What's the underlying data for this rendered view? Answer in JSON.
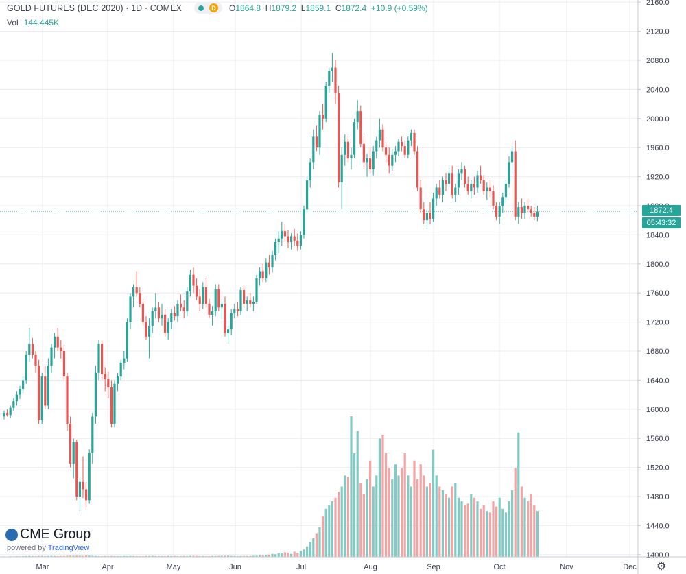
{
  "header": {
    "title": "GOLD FUTURES (DEC 2020) · 1D · COMEX",
    "interval_badge": "D",
    "ohlc": {
      "o_label": "O",
      "o": "1864.8",
      "h_label": "H",
      "h": "1879.2",
      "l_label": "L",
      "l": "1859.1",
      "c_label": "C",
      "c": "1872.4",
      "change": "+10.9 (+0.59%)"
    },
    "vol_label": "Vol",
    "vol_value": "144.445K"
  },
  "price_tag": {
    "last": "1872.4",
    "countdown": "05:43:32"
  },
  "branding": {
    "logo": "CME Group",
    "powered": "powered by",
    "tv": "TradingView"
  },
  "colors": {
    "up": "#26a69a",
    "down": "#ef5350",
    "vol_up": "#80cbc4",
    "vol_down": "#f5a3a3",
    "grid": "#e9ecf1"
  },
  "icons": {
    "status": "status-dot-icon",
    "settings": "gear-icon",
    "logo": "cme-globe-icon"
  },
  "chart_data": {
    "type": "candlestick",
    "x_ticks": [
      "Mar",
      "Apr",
      "May",
      "Jun",
      "Jul",
      "Aug",
      "Sep",
      "Oct",
      "Nov",
      "Dec"
    ],
    "y_ticks": [
      1400.0,
      1440.0,
      1480.0,
      1520.0,
      1560.0,
      1600.0,
      1640.0,
      1680.0,
      1720.0,
      1760.0,
      1800.0,
      1840.0,
      1880.0,
      1920.0,
      1960.0,
      2000.0,
      2040.0,
      2080.0,
      2120.0,
      2160.0
    ],
    "ylim": [
      1397,
      2163
    ],
    "last_price": 1872.4,
    "series": [
      {
        "name": "Price",
        "points": [
          [
            1590,
            1598,
            1586,
            1595
          ],
          [
            1595,
            1600,
            1590,
            1592
          ],
          [
            1592,
            1605,
            1588,
            1602
          ],
          [
            1602,
            1615,
            1598,
            1611
          ],
          [
            1611,
            1625,
            1605,
            1620
          ],
          [
            1620,
            1632,
            1614,
            1628
          ],
          [
            1628,
            1645,
            1622,
            1640
          ],
          [
            1640,
            1680,
            1635,
            1675
          ],
          [
            1675,
            1712,
            1665,
            1690
          ],
          [
            1690,
            1698,
            1670,
            1675
          ],
          [
            1675,
            1680,
            1650,
            1660
          ],
          [
            1660,
            1668,
            1580,
            1585
          ],
          [
            1585,
            1650,
            1580,
            1645
          ],
          [
            1645,
            1660,
            1600,
            1605
          ],
          [
            1605,
            1670,
            1600,
            1660
          ],
          [
            1660,
            1690,
            1650,
            1685
          ],
          [
            1685,
            1705,
            1670,
            1700
          ],
          [
            1700,
            1712,
            1680,
            1685
          ],
          [
            1685,
            1695,
            1670,
            1680
          ],
          [
            1680,
            1688,
            1640,
            1645
          ],
          [
            1645,
            1650,
            1570,
            1580
          ],
          [
            1580,
            1590,
            1520,
            1525
          ],
          [
            1525,
            1560,
            1505,
            1555
          ],
          [
            1555,
            1558,
            1475,
            1480
          ],
          [
            1480,
            1505,
            1460,
            1500
          ],
          [
            1500,
            1535,
            1478,
            1490
          ],
          [
            1490,
            1500,
            1465,
            1475
          ],
          [
            1475,
            1545,
            1470,
            1540
          ],
          [
            1540,
            1595,
            1525,
            1590
          ],
          [
            1590,
            1660,
            1580,
            1650
          ],
          [
            1650,
            1695,
            1640,
            1690
          ],
          [
            1690,
            1695,
            1640,
            1648
          ],
          [
            1648,
            1658,
            1625,
            1642
          ],
          [
            1642,
            1652,
            1615,
            1630
          ],
          [
            1630,
            1640,
            1575,
            1580
          ],
          [
            1580,
            1640,
            1575,
            1635
          ],
          [
            1635,
            1650,
            1625,
            1645
          ],
          [
            1645,
            1668,
            1640,
            1664
          ],
          [
            1664,
            1680,
            1655,
            1670
          ],
          [
            1670,
            1725,
            1665,
            1720
          ],
          [
            1720,
            1760,
            1710,
            1755
          ],
          [
            1755,
            1772,
            1740,
            1768
          ],
          [
            1768,
            1790,
            1755,
            1760
          ],
          [
            1760,
            1768,
            1740,
            1745
          ],
          [
            1745,
            1752,
            1715,
            1720
          ],
          [
            1720,
            1728,
            1695,
            1700
          ],
          [
            1700,
            1725,
            1670,
            1715
          ],
          [
            1715,
            1740,
            1705,
            1735
          ],
          [
            1735,
            1760,
            1725,
            1740
          ],
          [
            1740,
            1748,
            1720,
            1725
          ],
          [
            1725,
            1745,
            1715,
            1730
          ],
          [
            1730,
            1738,
            1700,
            1705
          ],
          [
            1705,
            1725,
            1695,
            1720
          ],
          [
            1720,
            1738,
            1710,
            1732
          ],
          [
            1732,
            1742,
            1722,
            1728
          ],
          [
            1728,
            1750,
            1720,
            1745
          ],
          [
            1745,
            1758,
            1735,
            1740
          ],
          [
            1740,
            1750,
            1725,
            1735
          ],
          [
            1735,
            1768,
            1728,
            1762
          ],
          [
            1762,
            1792,
            1755,
            1785
          ],
          [
            1785,
            1795,
            1760,
            1770
          ],
          [
            1770,
            1780,
            1750,
            1755
          ],
          [
            1755,
            1765,
            1735,
            1745
          ],
          [
            1745,
            1775,
            1738,
            1768
          ],
          [
            1768,
            1780,
            1740,
            1745
          ],
          [
            1745,
            1752,
            1725,
            1730
          ],
          [
            1730,
            1742,
            1715,
            1735
          ],
          [
            1735,
            1772,
            1728,
            1765
          ],
          [
            1765,
            1772,
            1735,
            1740
          ],
          [
            1740,
            1752,
            1725,
            1745
          ],
          [
            1745,
            1755,
            1700,
            1705
          ],
          [
            1705,
            1715,
            1690,
            1710
          ],
          [
            1710,
            1738,
            1702,
            1732
          ],
          [
            1732,
            1745,
            1725,
            1738
          ],
          [
            1738,
            1748,
            1728,
            1735
          ],
          [
            1735,
            1768,
            1730,
            1764
          ],
          [
            1764,
            1770,
            1740,
            1745
          ],
          [
            1745,
            1755,
            1735,
            1750
          ],
          [
            1750,
            1760,
            1740,
            1745
          ],
          [
            1745,
            1755,
            1735,
            1748
          ],
          [
            1748,
            1785,
            1745,
            1780
          ],
          [
            1780,
            1795,
            1770,
            1790
          ],
          [
            1790,
            1800,
            1775,
            1780
          ],
          [
            1780,
            1808,
            1775,
            1802
          ],
          [
            1802,
            1812,
            1785,
            1795
          ],
          [
            1795,
            1818,
            1788,
            1812
          ],
          [
            1812,
            1835,
            1805,
            1830
          ],
          [
            1830,
            1845,
            1815,
            1835
          ],
          [
            1835,
            1858,
            1825,
            1845
          ],
          [
            1845,
            1855,
            1830,
            1838
          ],
          [
            1838,
            1846,
            1822,
            1830
          ],
          [
            1830,
            1842,
            1820,
            1838
          ],
          [
            1838,
            1848,
            1825,
            1832
          ],
          [
            1832,
            1842,
            1818,
            1825
          ],
          [
            1825,
            1845,
            1820,
            1840
          ],
          [
            1840,
            1880,
            1835,
            1875
          ],
          [
            1875,
            1920,
            1870,
            1915
          ],
          [
            1915,
            1945,
            1905,
            1940
          ],
          [
            1940,
            1985,
            1930,
            1975
          ],
          [
            1975,
            1990,
            1955,
            1960
          ],
          [
            1960,
            2010,
            1950,
            2005
          ],
          [
            2005,
            2020,
            1985,
            2000
          ],
          [
            2000,
            2050,
            1995,
            2045
          ],
          [
            2045,
            2070,
            2035,
            2065
          ],
          [
            2065,
            2090,
            2050,
            2070
          ],
          [
            2070,
            2080,
            2020,
            2035
          ],
          [
            2035,
            2045,
            1905,
            1912
          ],
          [
            1912,
            1960,
            1875,
            1950
          ],
          [
            1950,
            1978,
            1935,
            1968
          ],
          [
            1968,
            1975,
            1940,
            1945
          ],
          [
            1945,
            1960,
            1930,
            1950
          ],
          [
            1950,
            2000,
            1945,
            1995
          ],
          [
            1995,
            2025,
            1985,
            2010
          ],
          [
            2010,
            2018,
            1960,
            1965
          ],
          [
            1965,
            1975,
            1930,
            1940
          ],
          [
            1940,
            1952,
            1920,
            1945
          ],
          [
            1945,
            1960,
            1925,
            1930
          ],
          [
            1930,
            1962,
            1922,
            1955
          ],
          [
            1955,
            1975,
            1945,
            1970
          ],
          [
            1970,
            2000,
            1960,
            1985
          ],
          [
            1985,
            1992,
            1955,
            1960
          ],
          [
            1960,
            1968,
            1940,
            1950
          ],
          [
            1950,
            1960,
            1925,
            1935
          ],
          [
            1935,
            1958,
            1928,
            1950
          ],
          [
            1950,
            1962,
            1940,
            1955
          ],
          [
            1955,
            1972,
            1948,
            1968
          ],
          [
            1968,
            1975,
            1955,
            1962
          ],
          [
            1962,
            1970,
            1945,
            1950
          ],
          [
            1950,
            1975,
            1945,
            1970
          ],
          [
            1970,
            1985,
            1962,
            1980
          ],
          [
            1980,
            1985,
            1950,
            1955
          ],
          [
            1955,
            1962,
            1900,
            1905
          ],
          [
            1905,
            1915,
            1870,
            1875
          ],
          [
            1875,
            1885,
            1855,
            1860
          ],
          [
            1860,
            1875,
            1848,
            1870
          ],
          [
            1870,
            1885,
            1855,
            1862
          ],
          [
            1862,
            1898,
            1858,
            1890
          ],
          [
            1890,
            1910,
            1880,
            1905
          ],
          [
            1905,
            1915,
            1890,
            1895
          ],
          [
            1895,
            1920,
            1885,
            1915
          ],
          [
            1915,
            1925,
            1900,
            1910
          ],
          [
            1910,
            1932,
            1905,
            1925
          ],
          [
            1925,
            1935,
            1890,
            1895
          ],
          [
            1895,
            1910,
            1885,
            1905
          ],
          [
            1905,
            1930,
            1895,
            1925
          ],
          [
            1925,
            1940,
            1915,
            1930
          ],
          [
            1930,
            1935,
            1905,
            1910
          ],
          [
            1910,
            1920,
            1895,
            1900
          ],
          [
            1900,
            1915,
            1890,
            1910
          ],
          [
            1910,
            1920,
            1895,
            1905
          ],
          [
            1905,
            1928,
            1898,
            1922
          ],
          [
            1922,
            1935,
            1910,
            1915
          ],
          [
            1915,
            1922,
            1895,
            1900
          ],
          [
            1900,
            1912,
            1888,
            1905
          ],
          [
            1905,
            1915,
            1892,
            1900
          ],
          [
            1900,
            1908,
            1875,
            1880
          ],
          [
            1880,
            1885,
            1860,
            1865
          ],
          [
            1865,
            1885,
            1855,
            1880
          ],
          [
            1880,
            1898,
            1870,
            1892
          ],
          [
            1892,
            1915,
            1885,
            1910
          ],
          [
            1910,
            1948,
            1905,
            1940
          ],
          [
            1940,
            1962,
            1925,
            1955
          ],
          [
            1955,
            1970,
            1860,
            1865
          ],
          [
            1865,
            1885,
            1855,
            1878
          ],
          [
            1878,
            1890,
            1862,
            1870
          ],
          [
            1870,
            1885,
            1862,
            1880
          ],
          [
            1880,
            1890,
            1870,
            1875
          ],
          [
            1875,
            1880,
            1865,
            1870
          ],
          [
            1870,
            1878,
            1860,
            1865
          ],
          [
            1865,
            1880,
            1859,
            1872
          ]
        ]
      }
    ],
    "volume": [
      0.6,
      0.5,
      0.7,
      0.6,
      0.8,
      0.7,
      0.9,
      1.1,
      1.3,
      1.0,
      0.9,
      1.2,
      1.1,
      1.0,
      1.2,
      1.3,
      1.1,
      1.0,
      1.1,
      1.2,
      1.5,
      1.7,
      1.4,
      1.6,
      1.5,
      1.3,
      1.8,
      1.6,
      1.4,
      1.2,
      1.0,
      0.9,
      1.1,
      1.0,
      1.2,
      1.1,
      0.9,
      1.0,
      1.1,
      0.9,
      1.2,
      1.0,
      1.1,
      0.9,
      1.0,
      1.2,
      1.1,
      1.3,
      1.0,
      0.9,
      1.0,
      1.1,
      1.2,
      1.0,
      1.1,
      0.9,
      1.0,
      1.2,
      1.1,
      1.3,
      1.4,
      1.2,
      1.0,
      1.1,
      0.9,
      1.0,
      1.2,
      1.1,
      1.3,
      1.4,
      1.5,
      1.6,
      1.2,
      1.1,
      1.0,
      1.2,
      1.3,
      1.1,
      1.2,
      1.4,
      1.6,
      1.8,
      2.0,
      2.5,
      3.0,
      4.0,
      3.5,
      5.0,
      4.5,
      6.0,
      5.5,
      4.0,
      7.0,
      5.0,
      8.0,
      10.0,
      14.0,
      20.0,
      25.0,
      32.0,
      40.0,
      55.0,
      65.0,
      70.0,
      75.0,
      80.0,
      88.0,
      95.0,
      110.0,
      108.0,
      190.0,
      140.0,
      170.0,
      100.0,
      85.0,
      105.0,
      130.0,
      95.0,
      110.0,
      160.0,
      165.0,
      140.0,
      120.0,
      105.0,
      125.0,
      110.0,
      120.0,
      140.0,
      110.0,
      95.0,
      130.0,
      105.0,
      125.0,
      110.0,
      95.0,
      100.0,
      145.0,
      110.0,
      95.0,
      90.0,
      85.0,
      80.0,
      95.0,
      100.0,
      80.0,
      75.0,
      70.0,
      72.0,
      85.0,
      80.0,
      75.0,
      65.0,
      70.0,
      62.0,
      60.0,
      75.0,
      68.0,
      80.0,
      65.0,
      60.0,
      75.0,
      90.0,
      120.0,
      168.0,
      95.0,
      80.0,
      75.0,
      85.0,
      70.0,
      62.0,
      0.0,
      0.0,
      0.0,
      0.0,
      0.0,
      0.0,
      0.0,
      0.0,
      0.0,
      0.0
    ]
  }
}
